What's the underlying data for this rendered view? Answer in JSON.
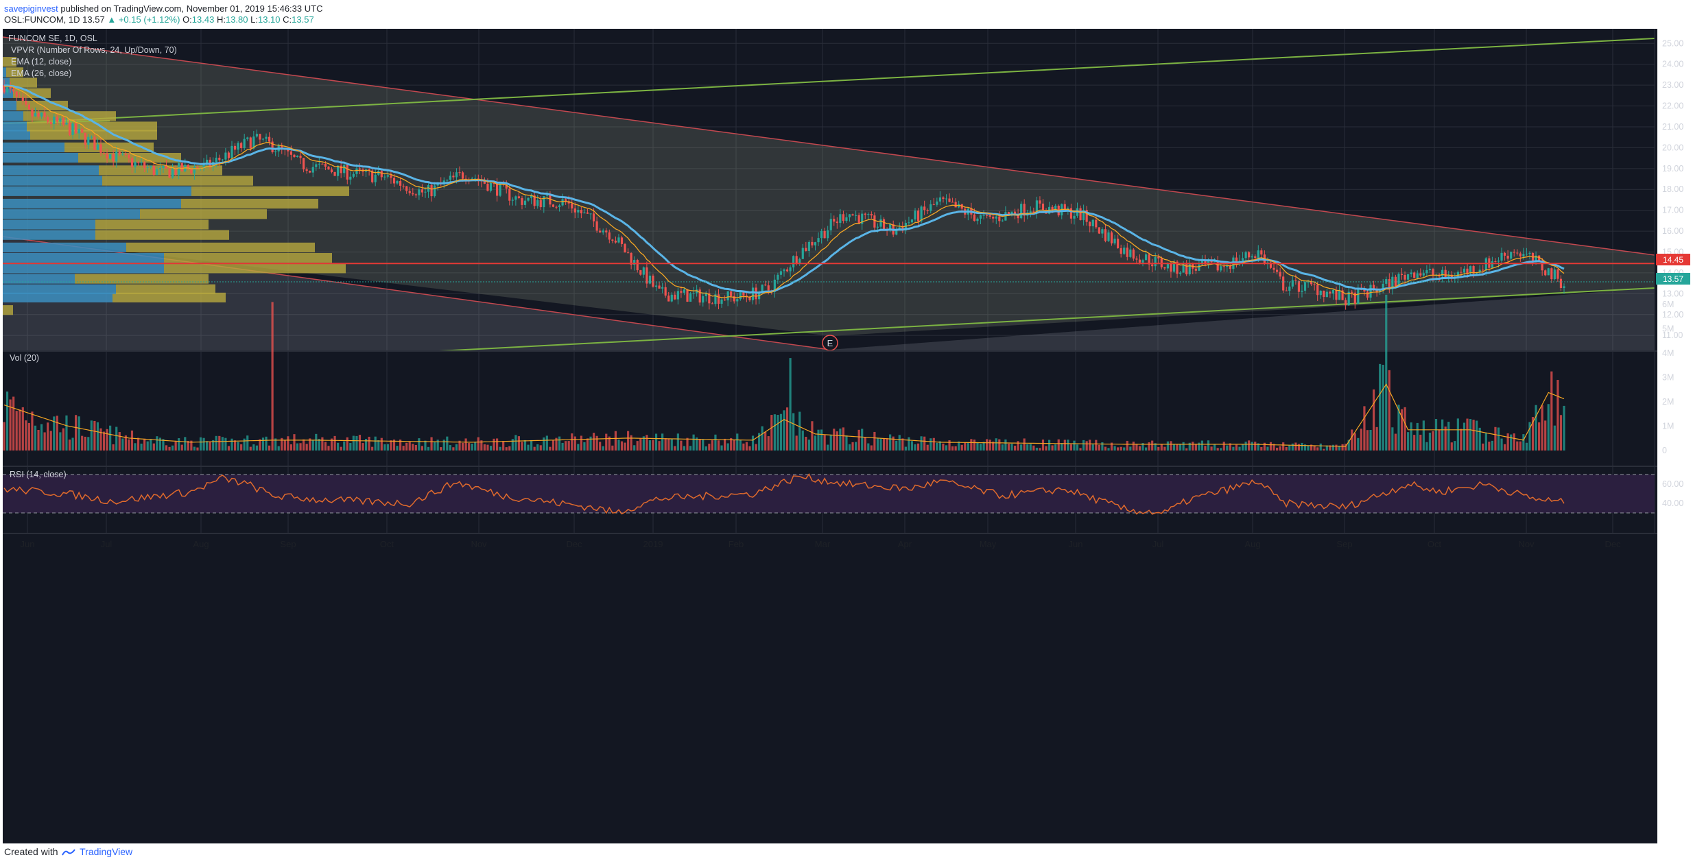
{
  "header": {
    "author": "savepiginvest",
    "published_text": "published on TradingView.com, November 01, 2019 15:46:33 UTC",
    "symbol": "OSL:FUNCOM, 1D",
    "price": "13.57",
    "change": "+0.15 (+1.12%)",
    "o_label": "O:",
    "o_val": "13.43",
    "h_label": "H:",
    "h_val": "13.80",
    "l_label": "L:",
    "l_val": "13.10",
    "c_label": "C:",
    "c_val": "13.57"
  },
  "legend": {
    "title": "FUNCOM SE, 1D, OSL",
    "vpvr": "VPVR (Number Of Rows, 24, Up/Down, 70)",
    "ema12": "EMA (12, close)",
    "ema26": "EMA (26, close)",
    "vol": "Vol (20)",
    "rsi": "RSI (14, close)"
  },
  "earnings_marker": "E",
  "footer": {
    "created": "Created with",
    "brand": "TradingView"
  },
  "colors": {
    "bg": "#131722",
    "up": "#26a69a",
    "down": "#ef5350",
    "ema12": "#f5a623",
    "ema26": "#5ab4e6",
    "channel": "#c2484f",
    "trend": "#7cb342",
    "rsi": "#e06a2c",
    "rsi_band": "#2b1f3f",
    "level": "#e53935"
  },
  "chart_data": {
    "type": "candlestick",
    "symbol": "FUNCOM SE, 1D, OSL",
    "price_axis": [
      "11.00",
      "12.00",
      "13.00",
      "14.00",
      "15.00",
      "16.00",
      "17.00",
      "18.00",
      "19.00",
      "20.00",
      "21.00",
      "22.00",
      "23.00",
      "24.00",
      "25.00"
    ],
    "volume_axis": [
      "0",
      "1M",
      "2M",
      "3M",
      "4M",
      "5M",
      "6M"
    ],
    "rsi_axis": [
      "40.00",
      "60.00"
    ],
    "time_labels": [
      "Jun",
      "Jul",
      "Aug",
      "Sep",
      "Oct",
      "Nov",
      "Dec",
      "2019",
      "Feb",
      "Mar",
      "Apr",
      "May",
      "Jun",
      "Jul",
      "Aug",
      "Sep",
      "Oct",
      "Nov",
      "Dec"
    ],
    "price_range": [
      10.25,
      25.7
    ],
    "horizontal_level": {
      "value": 14.45,
      "label": "14.45"
    },
    "last_price": {
      "value": 13.57,
      "label": "13.57"
    },
    "price_path": [
      [
        0,
        23.0
      ],
      [
        8,
        21.6
      ],
      [
        20,
        21.0
      ],
      [
        35,
        19.6
      ],
      [
        50,
        18.8
      ],
      [
        65,
        19.1
      ],
      [
        80,
        20.4
      ],
      [
        86,
        20.1
      ],
      [
        95,
        19.2
      ],
      [
        110,
        18.8
      ],
      [
        122,
        18.6
      ],
      [
        135,
        17.8
      ],
      [
        148,
        18.8
      ],
      [
        165,
        17.5
      ],
      [
        180,
        17.4
      ],
      [
        195,
        15.8
      ],
      [
        210,
        13.0
      ],
      [
        220,
        12.9
      ],
      [
        235,
        12.8
      ],
      [
        245,
        13.2
      ],
      [
        255,
        15.0
      ],
      [
        270,
        16.9
      ],
      [
        285,
        16.0
      ],
      [
        300,
        17.4
      ],
      [
        315,
        16.5
      ],
      [
        330,
        17.2
      ],
      [
        345,
        16.8
      ],
      [
        360,
        15.0
      ],
      [
        375,
        14.2
      ],
      [
        390,
        14.3
      ],
      [
        402,
        15.0
      ],
      [
        410,
        13.4
      ],
      [
        420,
        13.3
      ],
      [
        430,
        12.7
      ],
      [
        440,
        13.2
      ],
      [
        452,
        14.1
      ],
      [
        462,
        13.8
      ],
      [
        475,
        14.4
      ],
      [
        484,
        15.1
      ],
      [
        490,
        14.6
      ],
      [
        500,
        13.5
      ]
    ],
    "volume_path": [
      [
        0,
        2.2
      ],
      [
        20,
        1.2
      ],
      [
        40,
        0.6
      ],
      [
        60,
        0.4
      ],
      [
        86,
        0.5
      ],
      [
        100,
        0.5
      ],
      [
        150,
        0.4
      ],
      [
        200,
        0.6
      ],
      [
        240,
        0.5
      ],
      [
        250,
        1.5
      ],
      [
        260,
        0.8
      ],
      [
        300,
        0.4
      ],
      [
        360,
        0.3
      ],
      [
        400,
        0.3
      ],
      [
        430,
        0.2
      ],
      [
        443,
        3.2
      ],
      [
        450,
        1.0
      ],
      [
        470,
        1.0
      ],
      [
        487,
        0.5
      ],
      [
        495,
        2.8
      ],
      [
        500,
        2.5
      ]
    ],
    "volume_spikes": [
      [
        86,
        6.1
      ],
      [
        252,
        3.8
      ],
      [
        443,
        6.4
      ],
      [
        444,
        3.3
      ],
      [
        498,
        2.9
      ]
    ],
    "rsi_path": [
      [
        0,
        55
      ],
      [
        20,
        50
      ],
      [
        35,
        42
      ],
      [
        60,
        52
      ],
      [
        70,
        66
      ],
      [
        78,
        60
      ],
      [
        86,
        48
      ],
      [
        100,
        44
      ],
      [
        130,
        40
      ],
      [
        145,
        62
      ],
      [
        160,
        48
      ],
      [
        190,
        35
      ],
      [
        196,
        30
      ],
      [
        210,
        45
      ],
      [
        240,
        50
      ],
      [
        255,
        68
      ],
      [
        270,
        60
      ],
      [
        290,
        55
      ],
      [
        300,
        63
      ],
      [
        320,
        48
      ],
      [
        340,
        55
      ],
      [
        360,
        33
      ],
      [
        372,
        30
      ],
      [
        380,
        44
      ],
      [
        402,
        63
      ],
      [
        410,
        40
      ],
      [
        430,
        36
      ],
      [
        450,
        60
      ],
      [
        460,
        52
      ],
      [
        475,
        60
      ],
      [
        490,
        45
      ],
      [
        500,
        41
      ]
    ],
    "ema12_series": "EMA (12, close)",
    "ema26_series": "EMA (26, close)",
    "vpvr_rows": [
      {
        "price": 12.2,
        "up": 0.0,
        "down": 0.03
      },
      {
        "price": 12.8,
        "up": 0.32,
        "down": 0.33
      },
      {
        "price": 13.2,
        "up": 0.33,
        "down": 0.29
      },
      {
        "price": 13.7,
        "up": 0.21,
        "down": 0.39
      },
      {
        "price": 14.2,
        "up": 0.47,
        "down": 0.53
      },
      {
        "price": 14.7,
        "up": 0.47,
        "down": 0.49
      },
      {
        "price": 15.2,
        "up": 0.36,
        "down": 0.55
      },
      {
        "price": 15.8,
        "up": 0.27,
        "down": 0.39
      },
      {
        "price": 16.3,
        "up": 0.27,
        "down": 0.33
      },
      {
        "price": 16.8,
        "up": 0.4,
        "down": 0.37
      },
      {
        "price": 17.3,
        "up": 0.52,
        "down": 0.4
      },
      {
        "price": 17.9,
        "up": 0.55,
        "down": 0.46
      },
      {
        "price": 18.4,
        "up": 0.29,
        "down": 0.44
      },
      {
        "price": 18.9,
        "up": 0.28,
        "down": 0.36
      },
      {
        "price": 19.5,
        "up": 0.22,
        "down": 0.3
      },
      {
        "price": 20.0,
        "up": 0.18,
        "down": 0.26
      },
      {
        "price": 20.6,
        "up": 0.08,
        "down": 0.37
      },
      {
        "price": 21.0,
        "up": 0.07,
        "down": 0.38
      },
      {
        "price": 21.5,
        "up": 0.06,
        "down": 0.27
      },
      {
        "price": 22.0,
        "up": 0.04,
        "down": 0.15
      },
      {
        "price": 22.6,
        "up": 0.03,
        "down": 0.11
      },
      {
        "price": 23.1,
        "up": 0.02,
        "down": 0.08
      },
      {
        "price": 23.6,
        "up": 0.01,
        "down": 0.05
      },
      {
        "price": 24.1,
        "up": 0.0,
        "down": 0.04
      }
    ]
  }
}
